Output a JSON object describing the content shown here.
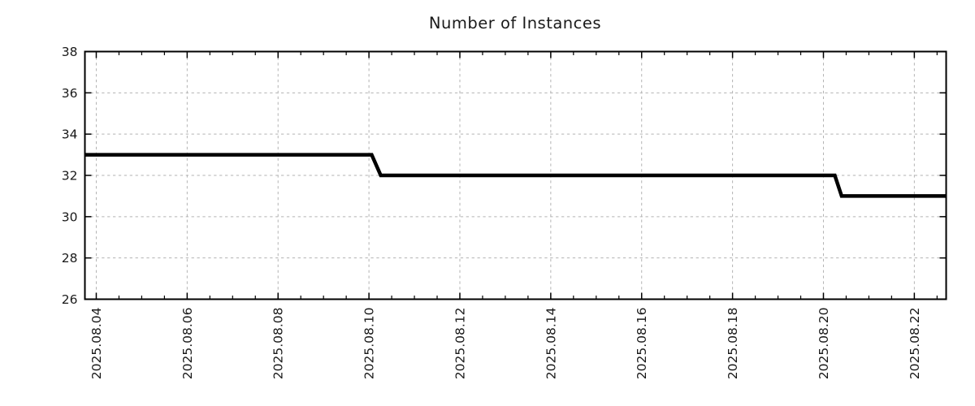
{
  "chart_data": {
    "type": "line",
    "subtype": "step",
    "title": "Number of Instances",
    "legend": "none",
    "colors": {
      "line": "#000000",
      "grid": "#b3b3b3",
      "axis": "#000000",
      "text": "#1a1a1a",
      "background": "#ffffff"
    },
    "grid": {
      "style": "dashed",
      "shown": true,
      "at": "major ticks only"
    },
    "x_axis": {
      "day_zero_label": "2025.08.04",
      "range_days": [
        -0.25,
        18.7
      ],
      "major_tick_days": [
        0,
        2,
        4,
        6,
        8,
        10,
        12,
        14,
        16,
        18
      ],
      "tick_labels": [
        "2025.08.04",
        "2025.08.06",
        "2025.08.08",
        "2025.08.10",
        "2025.08.12",
        "2025.08.14",
        "2025.08.16",
        "2025.08.18",
        "2025.08.20",
        "2025.08.22"
      ],
      "minor_tick_step_days": 0.5,
      "label_rotation_deg": -90
    },
    "y_axis": {
      "range": [
        26,
        38
      ],
      "ticks": [
        26,
        28,
        30,
        32,
        34,
        36,
        38
      ],
      "tick_labels": [
        "26",
        "28",
        "30",
        "32",
        "34",
        "36",
        "38"
      ],
      "minor_ticks": false
    },
    "series": [
      {
        "name": "instances",
        "step_points_day_value": [
          [
            -0.25,
            33
          ],
          [
            6.06,
            33
          ],
          [
            6.26,
            32
          ],
          [
            16.25,
            32
          ],
          [
            16.4,
            31
          ],
          [
            18.7,
            31
          ]
        ],
        "steps_readable": [
          {
            "value": 33,
            "from": "2025.08.03 ~18:00 (left edge)",
            "until": "2025.08.10 ~01:30"
          },
          {
            "value": 32,
            "from": "2025.08.10 ~06:00",
            "until": "2025.08.20 ~06:00"
          },
          {
            "value": 31,
            "from": "2025.08.20 ~09:30",
            "until": "2025.08.22 ~17:00 (right edge)"
          }
        ]
      }
    ]
  }
}
